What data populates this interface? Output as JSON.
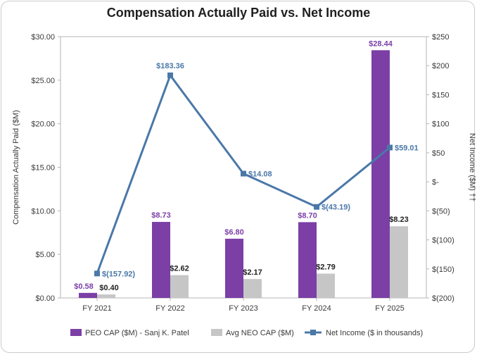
{
  "chart_data": {
    "type": "bar",
    "title": "Compensation Actually Paid vs. Net Income",
    "categories": [
      "FY 2021",
      "FY 2022",
      "FY 2023",
      "FY 2024",
      "FY 2025"
    ],
    "ylabel": "Compensation Actually Paid ($M)",
    "y2label": "Net Income ($M) ††",
    "ylim": [
      0,
      30
    ],
    "y2lim": [
      -200,
      250
    ],
    "yticks": [
      "$0.00",
      "$5.00",
      "$10.00",
      "$15.00",
      "$20.00",
      "$25.00",
      "$30.00"
    ],
    "y2ticks": [
      "$(200)",
      "$(150)",
      "$(100)",
      "$(50)",
      "$-",
      "$50",
      "$100",
      "$150",
      "$200",
      "$250"
    ],
    "grid": false,
    "legend_position": "bottom",
    "series": [
      {
        "name": "PEO CAP ($M) - Sanj K. Patel",
        "kind": "bar",
        "axis": "left",
        "color": "#7b3fa6",
        "values": [
          0.58,
          8.73,
          6.8,
          8.7,
          28.44
        ],
        "labels": [
          "$0.58",
          "$8.73",
          "$6.80",
          "$8.70",
          "$28.44"
        ]
      },
      {
        "name": "Avg NEO CAP ($M)",
        "kind": "bar",
        "axis": "left",
        "color": "#c6c6c6",
        "values": [
          0.4,
          2.62,
          2.17,
          2.79,
          8.23
        ],
        "labels": [
          "$0.40",
          "$2.62",
          "$2.17",
          "$2.79",
          "$8.23"
        ]
      },
      {
        "name": "Net Income ($ in thousands)",
        "kind": "line",
        "axis": "right",
        "color": "#4a78a8",
        "values": [
          -157.92,
          183.36,
          14.08,
          -43.19,
          59.01
        ],
        "labels": [
          "$(157.92)",
          "$183.36",
          "$14.08",
          "$(43.19)",
          "$59.01"
        ]
      }
    ]
  }
}
